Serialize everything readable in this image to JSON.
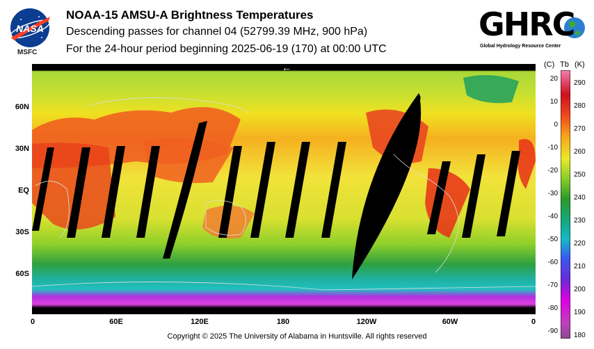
{
  "header": {
    "title": "NOAA-15 AMSU-A Brightness Temperatures",
    "subtitle": "Descending passes for channel 04 (52799.39 MHz, 900 hPa)",
    "period": "For the 24-hour period beginning 2025-06-19 (170) at 00:00 UTC"
  },
  "logos": {
    "nasa_text": "NASA",
    "msfc": "MSFC",
    "ghrc_text": "GHRC",
    "ghrc_sub": "Global Hydrology Resource Center"
  },
  "map": {
    "lat_labels": [
      "60N",
      "30N",
      "EQ",
      "30S",
      "60S"
    ],
    "lon_labels": [
      "0",
      "60E",
      "120E",
      "180",
      "120W",
      "60W",
      "0"
    ],
    "direction_arrow": "←"
  },
  "colorbar": {
    "header_c": "(C)",
    "header_tb": "Tb",
    "header_k": "(K)",
    "celsius_ticks": [
      "20",
      "10",
      "0",
      "-10",
      "-20",
      "-30",
      "-40",
      "-50",
      "-60",
      "-70",
      "-80",
      "-90"
    ],
    "kelvin_ticks": [
      "290",
      "280",
      "270",
      "260",
      "250",
      "240",
      "230",
      "220",
      "210",
      "200",
      "190",
      "180"
    ],
    "colors": [
      "#8c4a8c",
      "#e000e0",
      "#6a2bd8",
      "#3a5af0",
      "#17b7c7",
      "#15a77c",
      "#2a9a2a",
      "#8ecf2a",
      "#e9e92a",
      "#f6a81b",
      "#ef4a1e",
      "#cf1020",
      "#f080b0"
    ]
  },
  "footer": {
    "copyright": "Copyright © 2025 The University of Alabama in Huntsville.  All rights reserved"
  }
}
